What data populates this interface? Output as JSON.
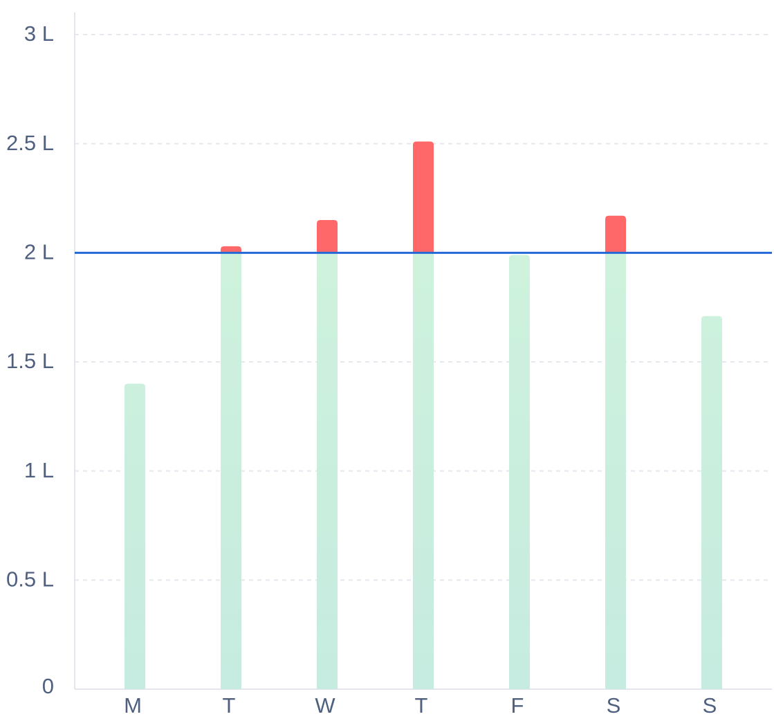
{
  "chart_data": {
    "type": "bar",
    "categories": [
      "M",
      "T",
      "W",
      "T",
      "F",
      "S",
      "S"
    ],
    "values": [
      1.4,
      2.03,
      2.15,
      2.51,
      1.99,
      2.17,
      1.71
    ],
    "target": 2,
    "y_ticks": [
      {
        "value": 0,
        "label": "0"
      },
      {
        "value": 0.5,
        "label": "0.5 L"
      },
      {
        "value": 1,
        "label": "1 L"
      },
      {
        "value": 1.5,
        "label": "1.5 L"
      },
      {
        "value": 2,
        "label": "2 L"
      },
      {
        "value": 2.5,
        "label": "2.5 L"
      },
      {
        "value": 3,
        "label": "3 L"
      }
    ],
    "ylim": [
      0,
      3
    ],
    "grid": true,
    "title": "",
    "xlabel": "",
    "ylabel": ""
  },
  "colors": {
    "bar_gradient_top": "#cef2dc",
    "bar_gradient_bottom": "#c6ebe0",
    "excess": "#ff6868",
    "target_line": "#2468d8",
    "grid": "#e5e8ee",
    "axis": "#e3e6ec",
    "tick_text": "#4f5f7f"
  }
}
